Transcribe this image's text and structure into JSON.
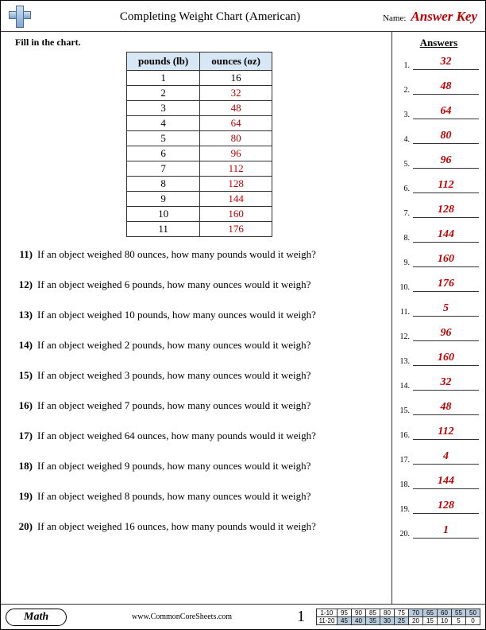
{
  "header": {
    "title": "Completing Weight Chart (American)",
    "name_label": "Name:",
    "answer_key": "Answer Key"
  },
  "instructions": "Fill in the chart.",
  "chart": {
    "headers": [
      "pounds (lb)",
      "ounces (oz)"
    ],
    "rows": [
      {
        "lb": "1",
        "oz": "16",
        "oz_is_answer": false
      },
      {
        "lb": "2",
        "oz": "32",
        "oz_is_answer": true
      },
      {
        "lb": "3",
        "oz": "48",
        "oz_is_answer": true
      },
      {
        "lb": "4",
        "oz": "64",
        "oz_is_answer": true
      },
      {
        "lb": "5",
        "oz": "80",
        "oz_is_answer": true
      },
      {
        "lb": "6",
        "oz": "96",
        "oz_is_answer": true
      },
      {
        "lb": "7",
        "oz": "112",
        "oz_is_answer": true
      },
      {
        "lb": "8",
        "oz": "128",
        "oz_is_answer": true
      },
      {
        "lb": "9",
        "oz": "144",
        "oz_is_answer": true
      },
      {
        "lb": "10",
        "oz": "160",
        "oz_is_answer": true
      },
      {
        "lb": "11",
        "oz": "176",
        "oz_is_answer": true
      }
    ]
  },
  "questions": [
    {
      "n": "11)",
      "text": "If an object weighed 80 ounces, how many pounds would it weigh?"
    },
    {
      "n": "12)",
      "text": "If an object weighed 6 pounds, how many ounces would it weigh?"
    },
    {
      "n": "13)",
      "text": "If an object weighed 10 pounds, how many ounces would it weigh?"
    },
    {
      "n": "14)",
      "text": "If an object weighed 2 pounds, how many ounces would it weigh?"
    },
    {
      "n": "15)",
      "text": "If an object weighed 3 pounds, how many ounces would it weigh?"
    },
    {
      "n": "16)",
      "text": "If an object weighed 7 pounds, how many ounces would it weigh?"
    },
    {
      "n": "17)",
      "text": "If an object weighed 64 ounces, how many pounds would it weigh?"
    },
    {
      "n": "18)",
      "text": "If an object weighed 9 pounds, how many ounces would it weigh?"
    },
    {
      "n": "19)",
      "text": "If an object weighed 8 pounds, how many ounces would it weigh?"
    },
    {
      "n": "20)",
      "text": "If an object weighed 16 ounces, how many pounds would it weigh?"
    }
  ],
  "answers": {
    "header": "Answers",
    "items": [
      {
        "n": "1.",
        "v": "32"
      },
      {
        "n": "2.",
        "v": "48"
      },
      {
        "n": "3.",
        "v": "64"
      },
      {
        "n": "4.",
        "v": "80"
      },
      {
        "n": "5.",
        "v": "96"
      },
      {
        "n": "6.",
        "v": "112"
      },
      {
        "n": "7.",
        "v": "128"
      },
      {
        "n": "8.",
        "v": "144"
      },
      {
        "n": "9.",
        "v": "160"
      },
      {
        "n": "10.",
        "v": "176"
      },
      {
        "n": "11.",
        "v": "5"
      },
      {
        "n": "12.",
        "v": "96"
      },
      {
        "n": "13.",
        "v": "160"
      },
      {
        "n": "14.",
        "v": "32"
      },
      {
        "n": "15.",
        "v": "48"
      },
      {
        "n": "16.",
        "v": "112"
      },
      {
        "n": "17.",
        "v": "4"
      },
      {
        "n": "18.",
        "v": "144"
      },
      {
        "n": "19.",
        "v": "128"
      },
      {
        "n": "20.",
        "v": "1"
      }
    ]
  },
  "footer": {
    "subject": "Math",
    "site": "www.CommonCoreSheets.com",
    "page": "1",
    "score": {
      "row1_label": "1-10",
      "row1": [
        "95",
        "90",
        "85",
        "80",
        "75",
        "70",
        "65",
        "60",
        "55",
        "50"
      ],
      "row1_shade_from": 5,
      "row2_label": "11-20",
      "row2": [
        "45",
        "40",
        "35",
        "30",
        "25",
        "20",
        "15",
        "10",
        "5",
        "0"
      ],
      "row2_shade_to": 5
    }
  },
  "colors": {
    "answer_red": "#c00000",
    "header_blue": "#d7e7f5",
    "shade_blue": "#b8ccdd"
  }
}
